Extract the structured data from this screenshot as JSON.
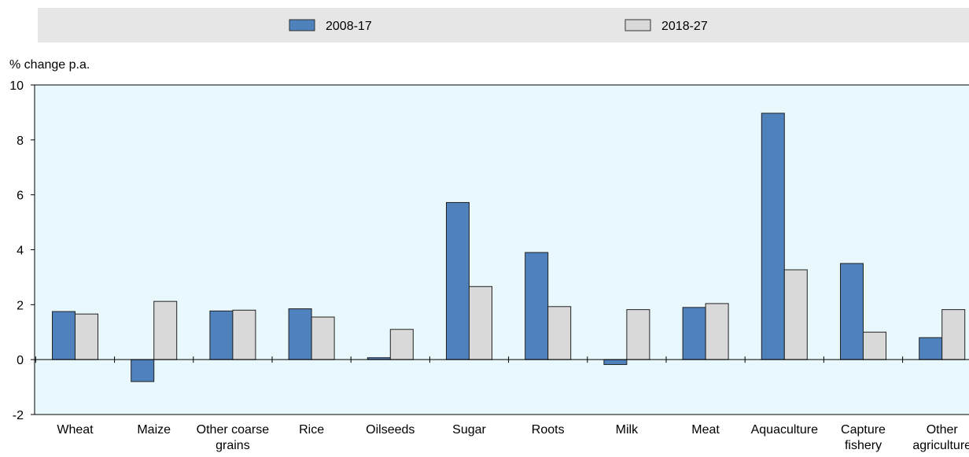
{
  "chart_data": {
    "type": "bar",
    "unit_label": "% change p.a.",
    "categories": [
      [
        "Wheat"
      ],
      [
        "Maize"
      ],
      [
        "Other coarse",
        "grains"
      ],
      [
        "Rice"
      ],
      [
        "Oilseeds"
      ],
      [
        "Sugar"
      ],
      [
        "Roots"
      ],
      [
        "Milk"
      ],
      [
        "Meat"
      ],
      [
        "Aquaculture"
      ],
      [
        "Capture",
        "fishery"
      ],
      [
        "Other",
        "agriculture"
      ]
    ],
    "series": [
      {
        "name": "2008-17",
        "color": "#4f81bd",
        "values": [
          1.75,
          -0.8,
          1.77,
          1.85,
          0.07,
          5.72,
          3.9,
          -0.18,
          1.9,
          8.97,
          3.5,
          0.8
        ]
      },
      {
        "name": "2018-27",
        "color": "#d9d9d9",
        "values": [
          1.66,
          2.12,
          1.8,
          1.55,
          1.1,
          2.66,
          1.93,
          1.82,
          2.04,
          3.27,
          1.0,
          1.82
        ]
      }
    ],
    "ylim": [
      -2,
      10
    ],
    "yticks": [
      -2,
      0,
      2,
      4,
      6,
      8,
      10
    ],
    "grid": false,
    "legend_position": "top",
    "plot_background": "#e8f8fc",
    "legend_background": "#e6e6e6"
  }
}
